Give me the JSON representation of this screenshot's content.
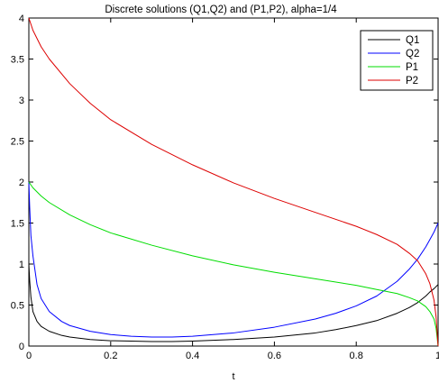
{
  "chart_data": {
    "type": "line",
    "title": "Discrete solutions (Q1,Q2) and (P1,P2), alpha=1/4",
    "xlabel": "t",
    "ylabel": "",
    "xlim": [
      0,
      1
    ],
    "ylim": [
      0,
      4
    ],
    "xticks": [
      0,
      0.2,
      0.4,
      0.6,
      0.8,
      1
    ],
    "xtick_labels": [
      "0",
      "0.2",
      "0.4",
      "0.6",
      "0.8",
      "1"
    ],
    "yticks": [
      0,
      0.5,
      1,
      1.5,
      2,
      2.5,
      3,
      3.5,
      4
    ],
    "ytick_labels": [
      "0",
      "0.5",
      "1",
      "1.5",
      "2",
      "2.5",
      "3",
      "3.5",
      "4"
    ],
    "grid": false,
    "legend_position": "top-right",
    "series": [
      {
        "name": "Q1",
        "color": "#000000",
        "x": [
          0,
          0.002,
          0.005,
          0.01,
          0.02,
          0.03,
          0.05,
          0.08,
          0.1,
          0.15,
          0.2,
          0.25,
          0.3,
          0.35,
          0.4,
          0.5,
          0.6,
          0.7,
          0.75,
          0.8,
          0.85,
          0.9,
          0.93,
          0.95,
          0.97,
          0.98,
          0.99,
          1.0
        ],
        "y": [
          1.0,
          0.8,
          0.6,
          0.42,
          0.3,
          0.24,
          0.18,
          0.13,
          0.11,
          0.08,
          0.065,
          0.06,
          0.055,
          0.055,
          0.06,
          0.08,
          0.11,
          0.16,
          0.2,
          0.25,
          0.31,
          0.4,
          0.47,
          0.53,
          0.61,
          0.66,
          0.7,
          0.75
        ]
      },
      {
        "name": "Q2",
        "color": "#0000ff",
        "x": [
          0,
          0.002,
          0.005,
          0.01,
          0.02,
          0.03,
          0.05,
          0.08,
          0.1,
          0.15,
          0.2,
          0.25,
          0.3,
          0.35,
          0.4,
          0.5,
          0.6,
          0.7,
          0.75,
          0.8,
          0.85,
          0.9,
          0.93,
          0.95,
          0.97,
          0.98,
          0.99,
          1.0
        ],
        "y": [
          2.0,
          1.7,
          1.35,
          1.1,
          0.75,
          0.58,
          0.42,
          0.3,
          0.25,
          0.18,
          0.14,
          0.12,
          0.11,
          0.11,
          0.12,
          0.16,
          0.23,
          0.33,
          0.4,
          0.49,
          0.61,
          0.79,
          0.94,
          1.06,
          1.21,
          1.3,
          1.39,
          1.5
        ]
      },
      {
        "name": "P1",
        "color": "#00dd00",
        "x": [
          0,
          0.01,
          0.03,
          0.05,
          0.1,
          0.15,
          0.2,
          0.3,
          0.4,
          0.5,
          0.6,
          0.7,
          0.8,
          0.85,
          0.9,
          0.93,
          0.95,
          0.97,
          0.98,
          0.99,
          0.995,
          1.0
        ],
        "y": [
          2.0,
          1.93,
          1.83,
          1.75,
          1.6,
          1.48,
          1.38,
          1.23,
          1.1,
          0.99,
          0.9,
          0.82,
          0.74,
          0.69,
          0.64,
          0.59,
          0.55,
          0.48,
          0.42,
          0.33,
          0.22,
          0.0
        ]
      },
      {
        "name": "P2",
        "color": "#dd0000",
        "x": [
          0,
          0.01,
          0.03,
          0.05,
          0.1,
          0.15,
          0.2,
          0.3,
          0.4,
          0.5,
          0.6,
          0.7,
          0.8,
          0.85,
          0.9,
          0.93,
          0.95,
          0.97,
          0.98,
          0.99,
          0.995,
          1.0
        ],
        "y": [
          4.0,
          3.85,
          3.65,
          3.5,
          3.2,
          2.96,
          2.76,
          2.46,
          2.21,
          1.99,
          1.8,
          1.63,
          1.46,
          1.36,
          1.24,
          1.13,
          1.04,
          0.88,
          0.76,
          0.56,
          0.36,
          0.0
        ]
      }
    ]
  }
}
